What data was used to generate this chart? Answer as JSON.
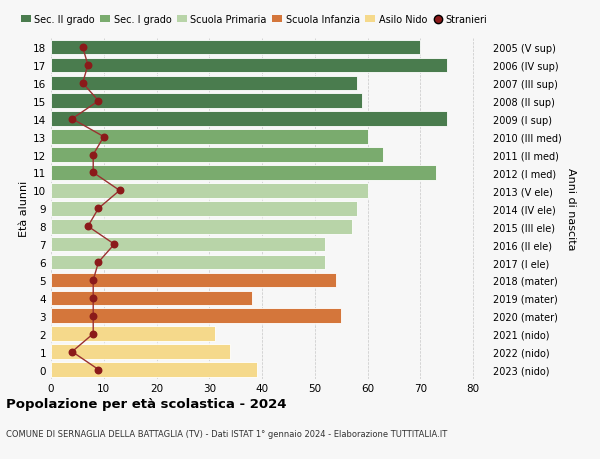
{
  "ages": [
    0,
    1,
    2,
    3,
    4,
    5,
    6,
    7,
    8,
    9,
    10,
    11,
    12,
    13,
    14,
    15,
    16,
    17,
    18
  ],
  "anni": [
    "2023 (nido)",
    "2022 (nido)",
    "2021 (nido)",
    "2020 (mater)",
    "2019 (mater)",
    "2018 (mater)",
    "2017 (I ele)",
    "2016 (II ele)",
    "2015 (III ele)",
    "2014 (IV ele)",
    "2013 (V ele)",
    "2012 (I med)",
    "2011 (II med)",
    "2010 (III med)",
    "2009 (I sup)",
    "2008 (II sup)",
    "2007 (III sup)",
    "2006 (IV sup)",
    "2005 (V sup)"
  ],
  "total": [
    39,
    34,
    31,
    55,
    38,
    54,
    52,
    52,
    57,
    58,
    60,
    73,
    63,
    60,
    75,
    59,
    58,
    75,
    70
  ],
  "stranieri": [
    9,
    4,
    8,
    8,
    8,
    8,
    9,
    12,
    7,
    9,
    13,
    8,
    8,
    10,
    4,
    9,
    6,
    7,
    6
  ],
  "bar_colors": [
    "#f5d98b",
    "#f5d98b",
    "#f5d98b",
    "#d4763b",
    "#d4763b",
    "#d4763b",
    "#b8d4a8",
    "#b8d4a8",
    "#b8d4a8",
    "#b8d4a8",
    "#b8d4a8",
    "#7aab6e",
    "#7aab6e",
    "#7aab6e",
    "#4a7c4e",
    "#4a7c4e",
    "#4a7c4e",
    "#4a7c4e",
    "#4a7c4e"
  ],
  "legend_labels": [
    "Sec. II grado",
    "Sec. I grado",
    "Scuola Primaria",
    "Scuola Infanzia",
    "Asilo Nido",
    "Stranieri"
  ],
  "legend_colors": [
    "#4a7c4e",
    "#7aab6e",
    "#b8d4a8",
    "#d4763b",
    "#f5d98b",
    "#8b1a1a"
  ],
  "stranieri_dot_color": "#8b1a1a",
  "stranieri_line_color": "#9b3030",
  "title": "Popolazione per età scolastica - 2024",
  "subtitle": "COMUNE DI SERNAGLIA DELLA BATTAGLIA (TV) - Dati ISTAT 1° gennaio 2024 - Elaborazione TUTTITALIA.IT",
  "ylabel_left": "Età alunni",
  "ylabel_right": "Anni di nascita",
  "xlim": [
    0,
    83
  ],
  "bg_color": "#f7f7f7",
  "bar_height": 0.82
}
